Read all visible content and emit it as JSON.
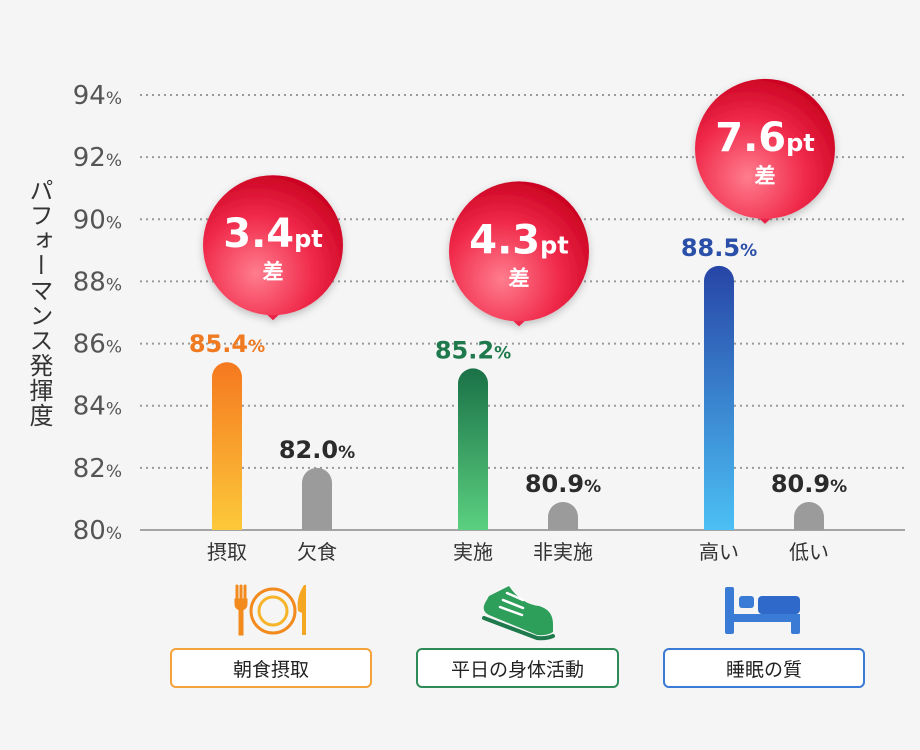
{
  "chart_data": {
    "type": "bar",
    "ylabel": "パフォーマンス発揮度",
    "ylim": [
      80,
      94
    ],
    "yticks": [
      80,
      82,
      84,
      86,
      88,
      90,
      92,
      94
    ],
    "tick_suffix": "%",
    "grid": true,
    "groups": [
      {
        "category": "朝食摂取",
        "icon": "plate-fork-knife-icon",
        "color": "#f07a22",
        "diff_value": "3.4",
        "diff_unit": "pt",
        "diff_caption": "差",
        "bars": [
          {
            "label": "摂取",
            "value": 85.4,
            "value_text": "85.4",
            "unit": "%"
          },
          {
            "label": "欠食",
            "value": 82.0,
            "value_text": "82.0",
            "unit": "%"
          }
        ]
      },
      {
        "category": "平日の身体活動",
        "icon": "running-shoe-icon",
        "color": "#1e7a4c",
        "diff_value": "4.3",
        "diff_unit": "pt",
        "diff_caption": "差",
        "bars": [
          {
            "label": "実施",
            "value": 85.2,
            "value_text": "85.2",
            "unit": "%"
          },
          {
            "label": "非実施",
            "value": 80.9,
            "value_text": "80.9",
            "unit": "%"
          }
        ]
      },
      {
        "category": "睡眠の質",
        "icon": "bed-icon",
        "color": "#2a4fa8",
        "diff_value": "7.6",
        "diff_unit": "pt",
        "diff_caption": "差",
        "bars": [
          {
            "label": "高い",
            "value": 88.5,
            "value_text": "88.5",
            "unit": "%"
          },
          {
            "label": "低い",
            "value": 80.9,
            "value_text": "80.9",
            "unit": "%"
          }
        ]
      }
    ]
  }
}
